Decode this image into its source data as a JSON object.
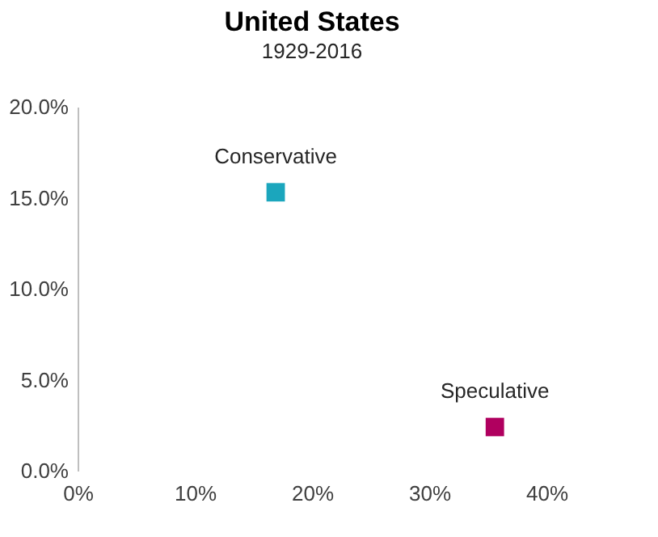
{
  "chart_data": {
    "type": "scatter",
    "title": "United States",
    "subtitle": "1929-2016",
    "marker": "square",
    "grid": false,
    "legend": false,
    "xlim": [
      0,
      40
    ],
    "xticks": [
      {
        "value": 0,
        "label": "0%"
      },
      {
        "value": 10,
        "label": "10%"
      },
      {
        "value": 20,
        "label": "20%"
      },
      {
        "value": 30,
        "label": "30%"
      },
      {
        "value": 40,
        "label": "40%"
      }
    ],
    "ylim": [
      0,
      20
    ],
    "yticks": [
      {
        "value": 0,
        "label": "0.0%"
      },
      {
        "value": 5,
        "label": "5.0%"
      },
      {
        "value": 10,
        "label": "10.0%"
      },
      {
        "value": 15,
        "label": "15.0%"
      },
      {
        "value": 20,
        "label": "20.0%"
      }
    ],
    "series": [
      {
        "name": "Conservative",
        "color": "#1ba6bd",
        "x": [
          16.9
        ],
        "values": [
          15.3
        ]
      },
      {
        "name": "Speculative",
        "color": "#b0005f",
        "x": [
          35.6
        ],
        "values": [
          2.4
        ]
      }
    ]
  }
}
